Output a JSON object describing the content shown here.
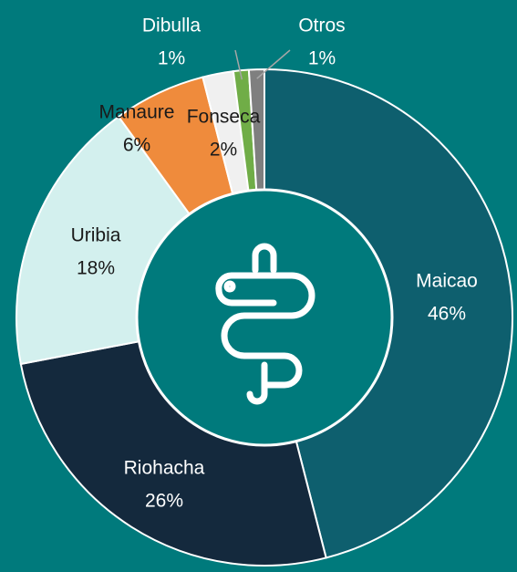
{
  "chart_data": {
    "type": "donut",
    "categories": [
      "Maicao",
      "Riohacha",
      "Uribia",
      "Manaure",
      "Fonseca",
      "Dibulla",
      "Otros"
    ],
    "values": [
      46,
      26,
      18,
      6,
      2,
      1,
      1
    ],
    "value_labels": [
      "46%",
      "26%",
      "18%",
      "6%",
      "2%",
      "1%",
      "1%"
    ],
    "colors": [
      "#0e5f6e",
      "#14293d",
      "#d3f0ee",
      "#ef8b3c",
      "#f0f0f0",
      "#70ad47",
      "#7f7f7f"
    ]
  }
}
